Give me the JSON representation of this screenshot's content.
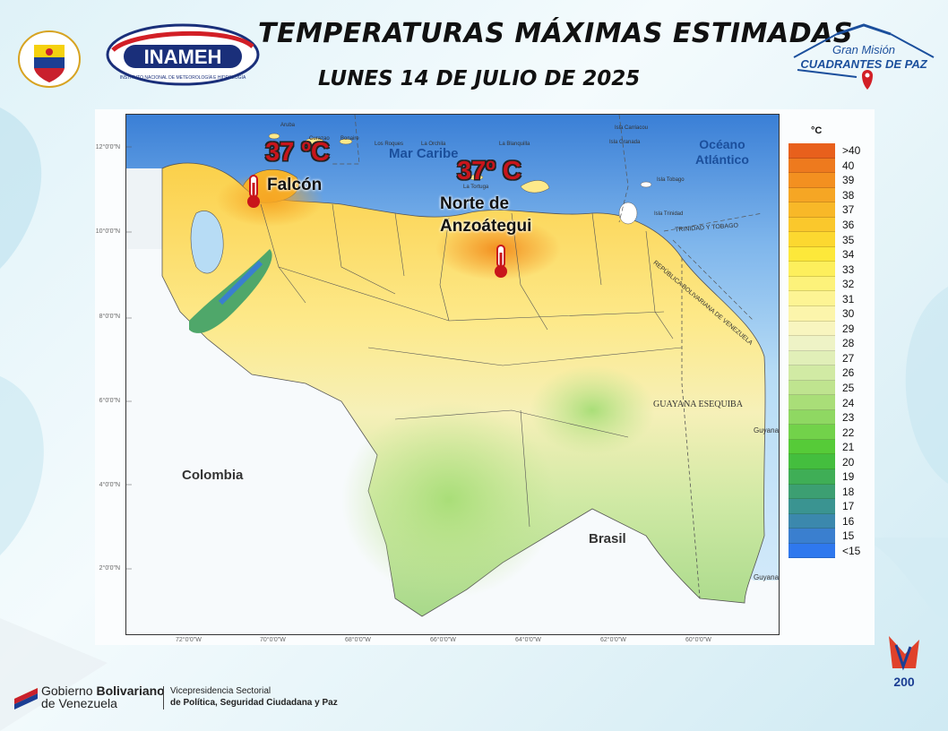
{
  "header": {
    "title": "TEMPERATURAS MÁXIMAS ESTIMADAS",
    "date": "LUNES 14 DE JULIO DE 2025"
  },
  "logos": {
    "inameh_text": "INAMEH",
    "inameh_subtext": "INSTITUTO NACIONAL DE METEOROLOGÍA E HIDROLOGÍA",
    "gmcp_line1": "Gran Misión",
    "gmcp_line2": "CUADRANTES DE PAZ"
  },
  "map": {
    "sea_label": "Mar Caribe",
    "ocean_label_line1": "Océano",
    "ocean_label_line2": "Atlántico",
    "colombia_label": "Colombia",
    "brasil_label": "Brasil",
    "guayana_label": "GUAYANA ESEQUIBA",
    "guyana_label": "Guyana",
    "guyana_label2": "Guyana",
    "trinidad_label": "TRINIDAD Y TOBAGO",
    "rbv_label": "REPÚBLICA BOLIVARIANA DE VENEZUELA",
    "islands": {
      "aruba": "Aruba",
      "curazao": "Curazao",
      "bonaire": "Bonaire",
      "los_roques": "Los Roques",
      "la_orchila": "La Orchila",
      "la_blanquilla": "La Blanquilla",
      "la_tortuga": "La Tortuga",
      "carriacou": "Isla Carriacou",
      "granada": "Isla Granada",
      "tobago": "Isla Tobago",
      "trinidad": "Isla Trinidad"
    },
    "lat_ticks": [
      "12°0'0\"N",
      "10°0'0\"N",
      "8°0'0\"N",
      "6°0'0\"N",
      "4°0'0\"N",
      "2°0'0\"N"
    ],
    "lon_ticks": [
      "72°0'0\"W",
      "70°0'0\"W",
      "68°0'0\"W",
      "66°0'0\"W",
      "64°0'0\"W",
      "62°0'0\"W",
      "60°0'0\"W"
    ],
    "highlights": [
      {
        "temp": "37 ºC",
        "place_line1": "Falcón",
        "place_line2": ""
      },
      {
        "temp": "37º C",
        "place_line1": "Norte de",
        "place_line2": "Anzoátegui"
      }
    ]
  },
  "legend": {
    "unit": "°C",
    "items": [
      {
        "label": ">40",
        "color": "#e8601c"
      },
      {
        "label": "40",
        "color": "#ee7a1e"
      },
      {
        "label": "39",
        "color": "#f39020"
      },
      {
        "label": "38",
        "color": "#f6a624"
      },
      {
        "label": "37",
        "color": "#f8b828"
      },
      {
        "label": "36",
        "color": "#fac82c"
      },
      {
        "label": "35",
        "color": "#fcd830"
      },
      {
        "label": " 34",
        "color": "#fde83a"
      },
      {
        "label": "33",
        "color": "#fdef5c"
      },
      {
        "label": "32",
        "color": "#fdf27a"
      },
      {
        "label": "31",
        "color": "#fdf494"
      },
      {
        "label": "30",
        "color": "#fcf5ab"
      },
      {
        "label": "29",
        "color": "#f8f5bf"
      },
      {
        "label": "28",
        "color": "#eef3c6"
      },
      {
        "label": "27",
        "color": "#e1efb8"
      },
      {
        "label": "26",
        "color": "#d1eaa4"
      },
      {
        "label": "25",
        "color": "#bfe48f"
      },
      {
        "label": "24",
        "color": "#a9de78"
      },
      {
        "label": "23",
        "color": "#8fd862"
      },
      {
        "label": "22",
        "color": "#72d24a"
      },
      {
        "label": "21",
        "color": "#56cb38"
      },
      {
        "label": "20",
        "color": "#44be3e"
      },
      {
        "label": "19",
        "color": "#3fae56"
      },
      {
        "label": "18",
        "color": "#3c9f72"
      },
      {
        "label": "17",
        "color": "#3a9491"
      },
      {
        "label": "16",
        "color": "#3b88ad"
      },
      {
        "label": "15",
        "color": "#3a7fcf"
      },
      {
        "label": "<15",
        "color": "#2f78ee"
      }
    ]
  },
  "footer": {
    "gob_line1_a": "Gobierno ",
    "gob_line1_b": "Bolivariano",
    "gob_line2": "de Venezuela",
    "vice_line1": "Vicepresidencia Sectorial",
    "vice_line2": "de Política, Seguridad Ciudadana y Paz",
    "bicentenario": "200"
  }
}
